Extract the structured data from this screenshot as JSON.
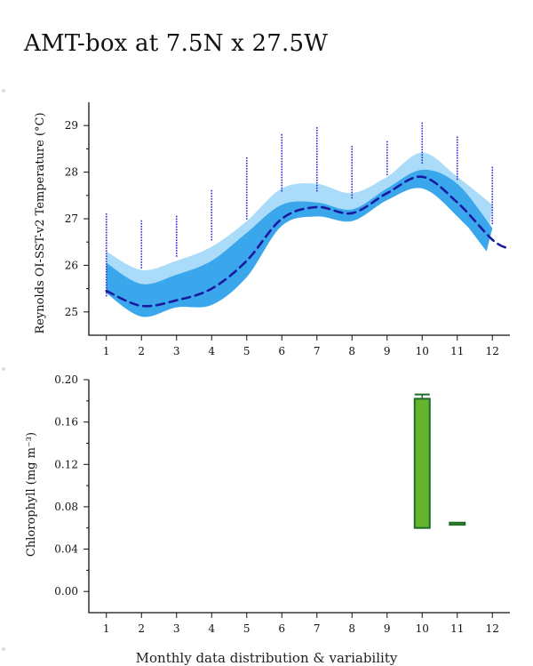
{
  "title": "AMT-box at 7.5N x 27.5W",
  "footer_caption": "Monthly data distribution & variability",
  "colors": {
    "outer_band": "#aadcfa",
    "inner_band": "#3aa6ec",
    "mean_line": "#1a1aa0",
    "points": "#2b2bd6",
    "bar_fill": "#66b32e",
    "bar_edge": "#1f6b2a"
  },
  "chart_data": [
    {
      "type": "area",
      "title": "",
      "xlabel": "",
      "ylabel": "Reynolds OI-SST-v2 Temperature (°C)",
      "xlim": [
        0.5,
        12.5
      ],
      "ylim": [
        24.5,
        29.5
      ],
      "x_ticks": [
        1,
        2,
        3,
        4,
        5,
        6,
        7,
        8,
        9,
        10,
        11,
        12
      ],
      "y_ticks": [
        25,
        26,
        27,
        28,
        29
      ],
      "x_tick_labels": [
        "1",
        "2",
        "3",
        "4",
        "5",
        "6",
        "7",
        "8",
        "9",
        "10",
        "11",
        "12"
      ],
      "y_tick_labels": [
        "25",
        "26",
        "27",
        "28",
        "29"
      ],
      "months": [
        1,
        2,
        3,
        4,
        5,
        6,
        7,
        8,
        9,
        10,
        11,
        12
      ],
      "mean": [
        25.45,
        25.13,
        25.25,
        25.5,
        26.1,
        27.0,
        27.25,
        27.12,
        27.55,
        27.9,
        27.35,
        26.55
      ],
      "mean_tail_x": [
        12.5
      ],
      "mean_tail_y": [
        26.35
      ],
      "inner_lower": [
        25.4,
        24.9,
        25.1,
        25.15,
        25.75,
        26.85,
        27.05,
        26.95,
        27.4,
        27.65,
        27.05,
        26.15
      ],
      "inner_upper": [
        26.05,
        25.6,
        25.8,
        26.1,
        26.7,
        27.3,
        27.35,
        27.2,
        27.65,
        28.05,
        27.75,
        26.8
      ],
      "outer_upper": [
        26.3,
        25.9,
        26.1,
        26.4,
        26.95,
        27.65,
        27.75,
        27.55,
        27.9,
        28.42,
        27.9,
        27.3
      ],
      "samples": [
        {
          "month": 1,
          "min": 25.35,
          "max": 27.1
        },
        {
          "month": 2,
          "min": 25.95,
          "max": 26.95
        },
        {
          "month": 3,
          "min": 26.2,
          "max": 27.05
        },
        {
          "month": 4,
          "min": 26.55,
          "max": 27.6
        },
        {
          "month": 5,
          "min": 27.0,
          "max": 28.3
        },
        {
          "month": 6,
          "min": 27.6,
          "max": 28.8
        },
        {
          "month": 7,
          "min": 27.6,
          "max": 28.95
        },
        {
          "month": 8,
          "min": 27.45,
          "max": 28.55
        },
        {
          "month": 9,
          "min": 27.95,
          "max": 28.65
        },
        {
          "month": 10,
          "min": 28.2,
          "max": 29.05
        },
        {
          "month": 11,
          "min": 27.85,
          "max": 28.75
        },
        {
          "month": 12,
          "min": 26.9,
          "max": 28.1
        }
      ]
    },
    {
      "type": "bar",
      "title": "",
      "xlabel": "",
      "ylabel": "Chlorophyll (mg m⁻³)",
      "xlim": [
        0.5,
        12.5
      ],
      "ylim": [
        -0.02,
        0.2
      ],
      "x_ticks": [
        1,
        2,
        3,
        4,
        5,
        6,
        7,
        8,
        9,
        10,
        11,
        12
      ],
      "y_ticks": [
        0.0,
        0.04,
        0.08,
        0.12,
        0.16,
        0.2
      ],
      "x_tick_labels": [
        "1",
        "2",
        "3",
        "4",
        "5",
        "6",
        "7",
        "8",
        "9",
        "10",
        "11",
        "12"
      ],
      "y_tick_labels": [
        "0.00",
        "0.04",
        "0.08",
        "0.12",
        "0.16",
        "0.20"
      ],
      "boxes": [
        {
          "month": 10,
          "low": 0.06,
          "high": 0.182,
          "whisker_high": 0.186
        },
        {
          "month": 11,
          "low": 0.063,
          "high": 0.065,
          "whisker_high": 0.065
        }
      ]
    }
  ]
}
